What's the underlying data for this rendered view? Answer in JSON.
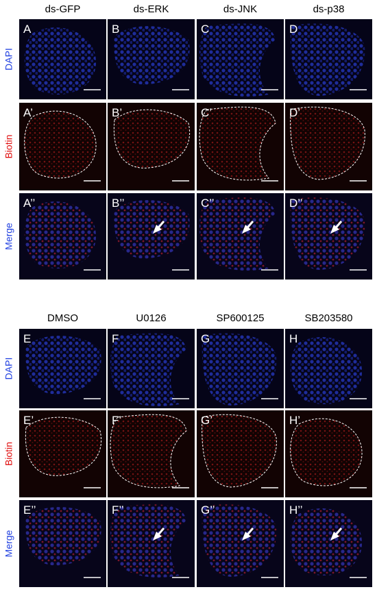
{
  "groups": [
    {
      "columns": [
        "ds-GFP",
        "ds-ERK",
        "ds-JNK",
        "ds-p38"
      ],
      "rows": [
        "DAPI",
        "Biotin",
        "Merge"
      ],
      "panels": [
        [
          "A",
          "B",
          "C",
          "D"
        ],
        [
          "A’",
          "B’",
          "C’",
          "D’"
        ],
        [
          "A’’",
          "B’’",
          "C’’",
          "D’’"
        ]
      ]
    },
    {
      "columns": [
        "DMSO",
        "U0126",
        "SP600125",
        "SB203580"
      ],
      "rows": [
        "DAPI",
        "Biotin",
        "Merge"
      ],
      "panels": [
        [
          "E",
          "F",
          "G",
          "H"
        ],
        [
          "E’",
          "F’",
          "G’",
          "H’"
        ],
        [
          "E’’",
          "F’’",
          "G’’",
          "H’’"
        ]
      ]
    }
  ]
}
